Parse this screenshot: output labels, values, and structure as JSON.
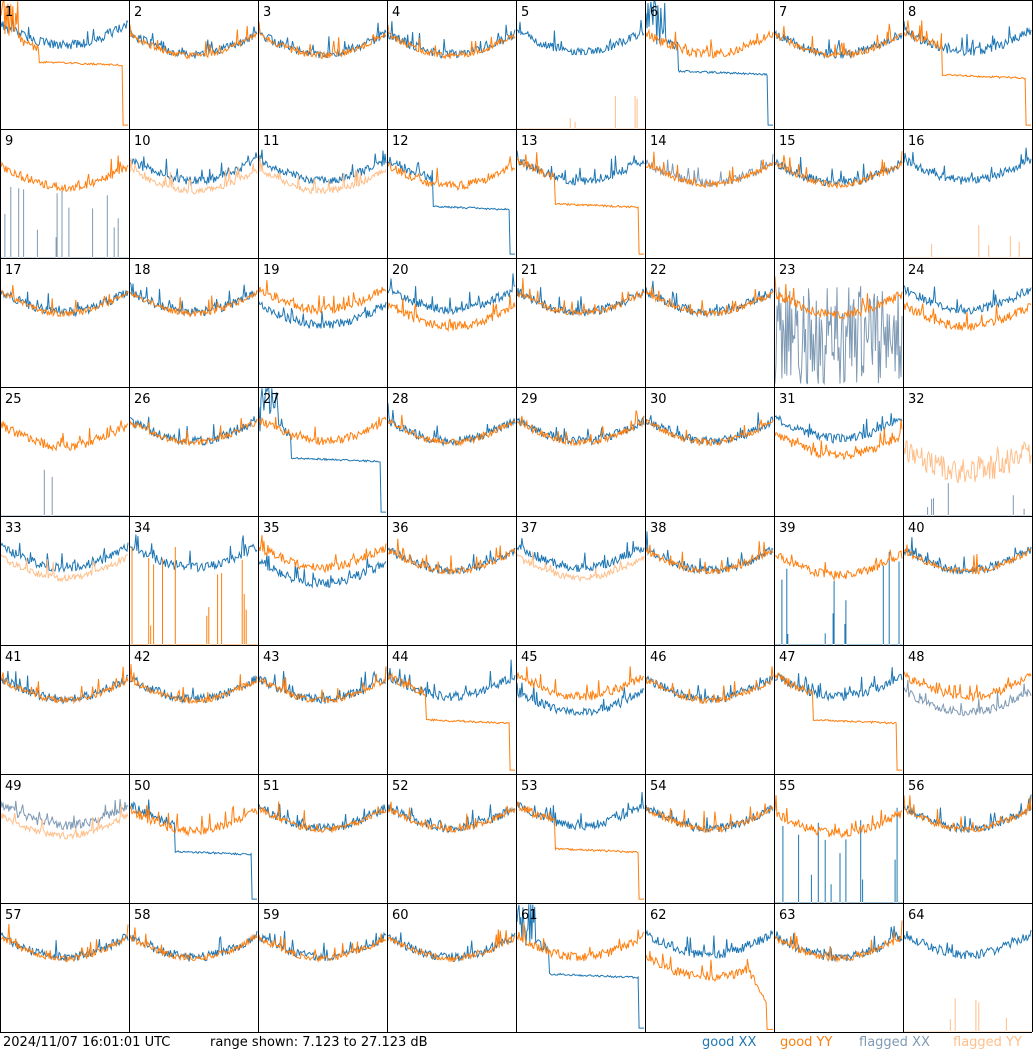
{
  "timestamp": "2024/11/07 16:01:01 UTC",
  "range_text": "range shown: 7.123 to 27.123 dB",
  "legend": {
    "good_xx": {
      "label": "good XX",
      "color": "#1f77b4"
    },
    "good_yy": {
      "label": "good YY",
      "color": "#ff7f0e"
    },
    "flagged_xx": {
      "label": "flagged XX",
      "color": "#7f9ab4"
    },
    "flagged_yy": {
      "label": "flagged YY",
      "color": "#ffbf8a"
    }
  },
  "chart_data": {
    "type": "line",
    "grid_rows": 8,
    "grid_cols": 8,
    "ylim": [
      7.123,
      27.123
    ],
    "ylabel": "",
    "xlabel": "",
    "panels": [
      {
        "label": "1",
        "xx": "good",
        "yy": "good",
        "style": "xxhigh_yyfall"
      },
      {
        "label": "2",
        "xx": "good",
        "yy": "good",
        "style": "normal"
      },
      {
        "label": "3",
        "xx": "good",
        "yy": "good",
        "style": "normal"
      },
      {
        "label": "4",
        "xx": "good",
        "yy": "good",
        "style": "normal"
      },
      {
        "label": "5",
        "xx": "good",
        "yy": "flagged",
        "style": "yyspikes"
      },
      {
        "label": "6",
        "xx": "good",
        "yy": "good",
        "style": "xxfall"
      },
      {
        "label": "7",
        "xx": "good",
        "yy": "good",
        "style": "normal"
      },
      {
        "label": "8",
        "xx": "good",
        "yy": "good",
        "style": "yyflat_fall"
      },
      {
        "label": "9",
        "xx": "flagged",
        "yy": "good",
        "style": "xxspikes"
      },
      {
        "label": "10",
        "xx": "good",
        "yy": "flagged",
        "style": "normal_low_yy"
      },
      {
        "label": "11",
        "xx": "good",
        "yy": "flagged",
        "style": "normal_low_yy"
      },
      {
        "label": "12",
        "xx": "good",
        "yy": "good",
        "style": "xxfall_soft"
      },
      {
        "label": "13",
        "xx": "good",
        "yy": "good",
        "style": "yyflat_fall"
      },
      {
        "label": "14",
        "xx": "flagged",
        "yy": "good",
        "style": "normal"
      },
      {
        "label": "15",
        "xx": "good",
        "yy": "good",
        "style": "normal"
      },
      {
        "label": "16",
        "xx": "good",
        "yy": "flagged",
        "style": "yyspikes"
      },
      {
        "label": "17",
        "xx": "good",
        "yy": "good",
        "style": "normal"
      },
      {
        "label": "18",
        "xx": "good",
        "yy": "good",
        "style": "normal"
      },
      {
        "label": "19",
        "xx": "good",
        "yy": "good",
        "style": "xxlow"
      },
      {
        "label": "20",
        "xx": "good",
        "yy": "good",
        "style": "yylow"
      },
      {
        "label": "21",
        "xx": "good",
        "yy": "good",
        "style": "normal"
      },
      {
        "label": "22",
        "xx": "good",
        "yy": "good",
        "style": "normal"
      },
      {
        "label": "23",
        "xx": "flagged",
        "yy": "good",
        "style": "xxnoise"
      },
      {
        "label": "24",
        "xx": "good",
        "yy": "good",
        "style": "yylow"
      },
      {
        "label": "25",
        "xx": "flagged",
        "yy": "good",
        "style": "xxspikes_few"
      },
      {
        "label": "26",
        "xx": "good",
        "yy": "good",
        "style": "normal"
      },
      {
        "label": "27",
        "xx": "good",
        "yy": "good",
        "style": "xxfall"
      },
      {
        "label": "28",
        "xx": "good",
        "yy": "good",
        "style": "normal"
      },
      {
        "label": "29",
        "xx": "good",
        "yy": "good",
        "style": "normal"
      },
      {
        "label": "30",
        "xx": "good",
        "yy": "good",
        "style": "normal"
      },
      {
        "label": "31",
        "xx": "good",
        "yy": "good",
        "style": "yylow"
      },
      {
        "label": "32",
        "xx": "flagged",
        "yy": "flagged",
        "style": "flagged_both"
      },
      {
        "label": "33",
        "xx": "good",
        "yy": "flagged",
        "style": "normal_low_yy"
      },
      {
        "label": "34",
        "xx": "good",
        "yy": "good",
        "style": "yyspikes_good"
      },
      {
        "label": "35",
        "xx": "good",
        "yy": "good",
        "style": "xxlow"
      },
      {
        "label": "36",
        "xx": "good",
        "yy": "good",
        "style": "normal"
      },
      {
        "label": "37",
        "xx": "good",
        "yy": "flagged",
        "style": "normal_low_yy"
      },
      {
        "label": "38",
        "xx": "good",
        "yy": "good",
        "style": "normal"
      },
      {
        "label": "39",
        "xx": "good",
        "yy": "good",
        "style": "xxspikes_good"
      },
      {
        "label": "40",
        "xx": "good",
        "yy": "good",
        "style": "normal"
      },
      {
        "label": "41",
        "xx": "good",
        "yy": "good",
        "style": "normal"
      },
      {
        "label": "42",
        "xx": "good",
        "yy": "good",
        "style": "normal"
      },
      {
        "label": "43",
        "xx": "good",
        "yy": "good",
        "style": "normal"
      },
      {
        "label": "44",
        "xx": "good",
        "yy": "good",
        "style": "yyflat_fall"
      },
      {
        "label": "45",
        "xx": "good",
        "yy": "good",
        "style": "xxlow"
      },
      {
        "label": "46",
        "xx": "good",
        "yy": "good",
        "style": "normal"
      },
      {
        "label": "47",
        "xx": "good",
        "yy": "good",
        "style": "yyflat_fall"
      },
      {
        "label": "48",
        "xx": "flagged",
        "yy": "good",
        "style": "xxlow"
      },
      {
        "label": "49",
        "xx": "flagged",
        "yy": "flagged",
        "style": "normal_low_yy"
      },
      {
        "label": "50",
        "xx": "good",
        "yy": "good",
        "style": "xxfall_soft"
      },
      {
        "label": "51",
        "xx": "good",
        "yy": "good",
        "style": "normal"
      },
      {
        "label": "52",
        "xx": "good",
        "yy": "good",
        "style": "normal"
      },
      {
        "label": "53",
        "xx": "good",
        "yy": "good",
        "style": "yyflat_fall"
      },
      {
        "label": "54",
        "xx": "good",
        "yy": "good",
        "style": "normal"
      },
      {
        "label": "55",
        "xx": "good",
        "yy": "good",
        "style": "xxspikes_good"
      },
      {
        "label": "56",
        "xx": "good",
        "yy": "good",
        "style": "normal"
      },
      {
        "label": "57",
        "xx": "good",
        "yy": "good",
        "style": "normal"
      },
      {
        "label": "58",
        "xx": "good",
        "yy": "good",
        "style": "normal"
      },
      {
        "label": "59",
        "xx": "good",
        "yy": "good",
        "style": "normal"
      },
      {
        "label": "60",
        "xx": "good",
        "yy": "good",
        "style": "normal"
      },
      {
        "label": "61",
        "xx": "good",
        "yy": "good",
        "style": "xxfall"
      },
      {
        "label": "62",
        "xx": "good",
        "yy": "good",
        "style": "yylow_fall"
      },
      {
        "label": "63",
        "xx": "good",
        "yy": "good",
        "style": "normal"
      },
      {
        "label": "64",
        "xx": "good",
        "yy": "flagged",
        "style": "yyspikes"
      }
    ]
  }
}
